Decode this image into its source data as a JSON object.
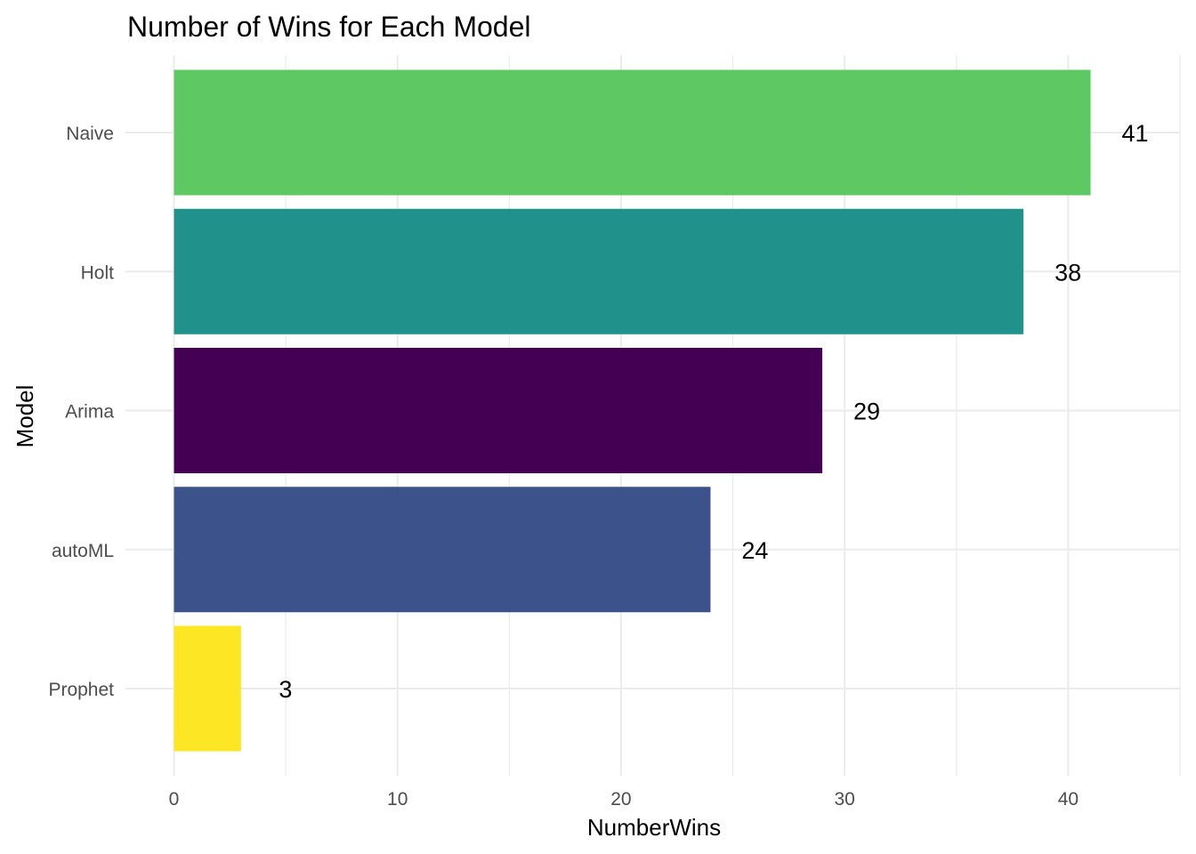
{
  "chart_data": {
    "type": "bar",
    "orientation": "horizontal",
    "title": "Number of Wins for Each Model",
    "xlabel": "NumberWins",
    "ylabel": "Model",
    "categories": [
      "Naive",
      "Holt",
      "Arima",
      "autoML",
      "Prophet"
    ],
    "values": [
      41,
      38,
      29,
      24,
      3
    ],
    "colors": [
      "#5ec962",
      "#21918c",
      "#440154",
      "#3b528b",
      "#fde725"
    ],
    "xlim": [
      0,
      45
    ],
    "x_ticks": [
      0,
      10,
      20,
      30,
      40
    ],
    "x_tick_labels": [
      "0",
      "10",
      "20",
      "30",
      "40"
    ],
    "grid": true,
    "legend": "none"
  }
}
